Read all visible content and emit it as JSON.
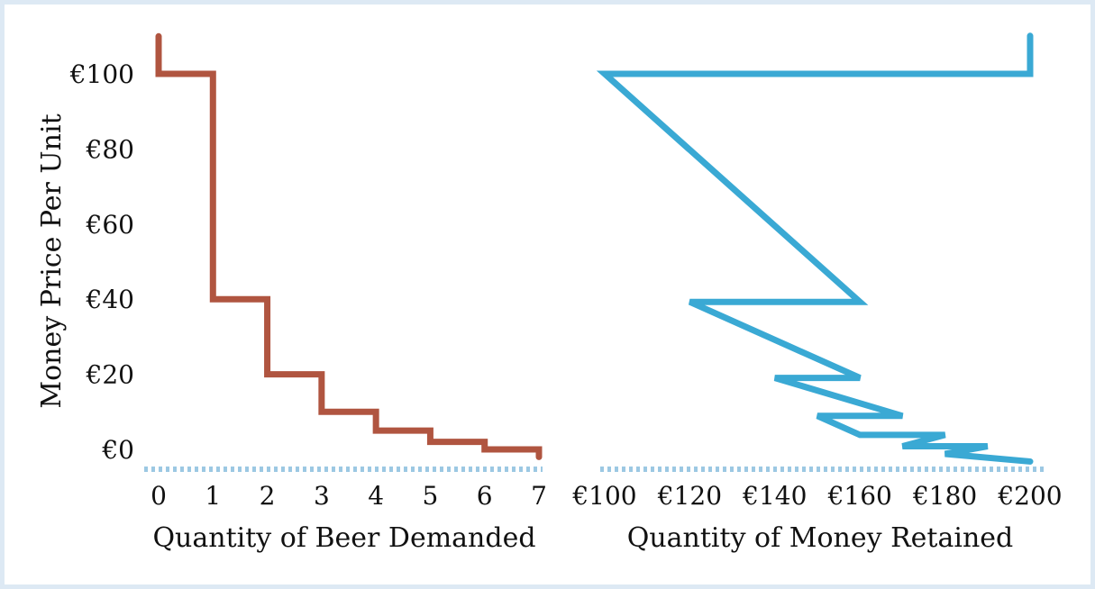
{
  "chart_data": [
    {
      "type": "line",
      "title": "",
      "xlabel": "Quantity of Beer Demanded",
      "ylabel": "Money Price Per Unit",
      "xlim": [
        0,
        7
      ],
      "ylim": [
        0,
        100
      ],
      "x_ticks": [
        "0",
        "1",
        "2",
        "3",
        "4",
        "5",
        "6",
        "7"
      ],
      "y_ticks": [
        "€0",
        "€20",
        "€40",
        "€60",
        "€80",
        "€100"
      ],
      "y_tick_values": [
        0,
        20,
        40,
        60,
        80,
        100
      ],
      "grid": false,
      "color": "#b05540",
      "series": [
        {
          "x": [
            0,
            0,
            1,
            1,
            2,
            2,
            3,
            3,
            4,
            4,
            5,
            5,
            6,
            6,
            7,
            7
          ],
          "y": [
            110,
            100,
            100,
            40,
            40,
            20,
            20,
            10,
            10,
            5,
            5,
            2,
            2,
            0,
            0,
            -2
          ]
        }
      ]
    },
    {
      "type": "line",
      "title": "",
      "xlabel": "Quantity of Money Retained",
      "ylabel": "Money Price Per Unit",
      "xlim": [
        100,
        200
      ],
      "ylim": [
        0,
        100
      ],
      "x_ticks": [
        "€100",
        "€120",
        "€140",
        "€160",
        "€180",
        "€200"
      ],
      "x_tick_values": [
        100,
        120,
        140,
        160,
        180,
        200
      ],
      "grid": false,
      "color": "#3aa9d4",
      "series": [
        {
          "x": [
            200,
            200,
            100,
            160,
            120,
            160,
            140,
            170,
            150,
            160,
            180,
            170,
            190,
            180,
            200
          ],
          "y": [
            110,
            100,
            100,
            40,
            40,
            20,
            20,
            10,
            10,
            5,
            5,
            2,
            2,
            0,
            -2
          ]
        }
      ]
    }
  ],
  "axis_colors": {
    "left_baseline": "#9cc8e3",
    "right_baseline": "#9cc8e3"
  }
}
